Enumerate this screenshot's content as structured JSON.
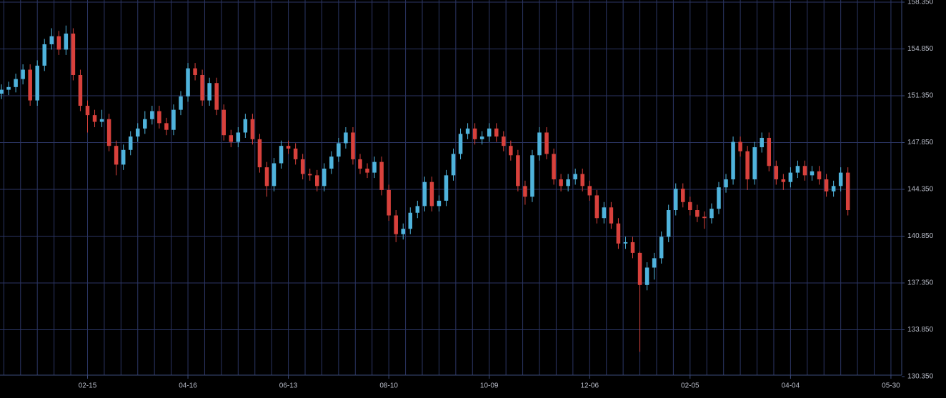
{
  "chart_data": {
    "type": "candlestick",
    "open": [
      151.5,
      151.8,
      152.0,
      152.6,
      153.3,
      151.0,
      153.6,
      155.2,
      155.8,
      154.8,
      156.0,
      152.9,
      150.6,
      149.9,
      149.4,
      149.6,
      147.6,
      146.2,
      147.3,
      148.3,
      148.9,
      149.6,
      150.2,
      149.3,
      148.8,
      150.3,
      151.3,
      153.4,
      152.9,
      151.0,
      152.3,
      150.3,
      148.4,
      147.9,
      148.6,
      149.6,
      148.1,
      146.0,
      144.6,
      146.3,
      147.6,
      147.4,
      146.6,
      145.5,
      145.4,
      144.6,
      145.9,
      146.8,
      147.8,
      148.6,
      146.6,
      145.9,
      145.6,
      146.4,
      144.3,
      142.4,
      141.0,
      141.4,
      142.6,
      143.1,
      144.9,
      143.1,
      143.5,
      145.4,
      147.0,
      148.5,
      148.9,
      148.1,
      148.3,
      148.9,
      148.3,
      147.6,
      146.9,
      144.6,
      143.8,
      146.9,
      148.6,
      147.0,
      145.1,
      144.6,
      145.1,
      145.5,
      144.6,
      143.9,
      142.2,
      143.0,
      141.8,
      140.3,
      140.4,
      139.6,
      137.2,
      138.5,
      139.2,
      140.8,
      142.8,
      144.4,
      143.4,
      142.8,
      142.3,
      142.2,
      142.9,
      144.5,
      145.1,
      147.9,
      147.2,
      145.1,
      147.5,
      148.2,
      146.1,
      145.1,
      144.9,
      145.6,
      146.1,
      145.4,
      145.7,
      145.1,
      144.2,
      144.6,
      145.6
    ],
    "high": [
      152.2,
      152.4,
      153.0,
      153.7,
      153.7,
      154.0,
      155.6,
      156.4,
      156.2,
      156.6,
      156.4,
      153.3,
      151.0,
      150.3,
      150.3,
      150.0,
      148.0,
      147.7,
      148.7,
      149.3,
      150.2,
      150.6,
      150.6,
      149.7,
      150.7,
      151.7,
      153.8,
      153.8,
      153.3,
      152.7,
      152.7,
      150.7,
      148.8,
      149.0,
      150.0,
      150.0,
      148.5,
      146.4,
      146.7,
      148.0,
      148.0,
      147.8,
      147.0,
      145.9,
      145.8,
      146.3,
      147.2,
      148.2,
      149.0,
      149.0,
      147.0,
      146.3,
      146.8,
      146.8,
      144.7,
      142.8,
      141.8,
      143.0,
      143.5,
      145.3,
      145.3,
      143.9,
      145.8,
      147.4,
      148.9,
      149.3,
      149.3,
      148.7,
      149.3,
      149.3,
      148.7,
      148.0,
      147.3,
      145.0,
      147.3,
      149.0,
      149.0,
      147.4,
      145.5,
      145.5,
      145.9,
      145.9,
      145.0,
      144.3,
      143.4,
      143.4,
      142.2,
      140.8,
      140.8,
      139.7,
      138.9,
      139.6,
      141.2,
      143.2,
      144.8,
      144.8,
      143.8,
      143.2,
      142.7,
      143.3,
      144.9,
      145.5,
      148.3,
      148.3,
      147.6,
      147.9,
      148.6,
      148.6,
      146.5,
      145.5,
      146.0,
      146.5,
      146.5,
      146.1,
      146.1,
      145.5,
      145.0,
      146.0,
      146.0
    ],
    "low": [
      151.1,
      151.4,
      151.6,
      152.2,
      150.6,
      150.6,
      153.2,
      154.8,
      154.4,
      154.4,
      152.5,
      150.2,
      148.6,
      149.0,
      149.0,
      147.2,
      145.4,
      145.8,
      146.9,
      147.9,
      148.5,
      149.2,
      148.9,
      148.4,
      148.4,
      149.9,
      150.9,
      152.5,
      150.6,
      150.6,
      149.9,
      148.0,
      147.5,
      147.5,
      148.2,
      147.7,
      145.6,
      143.8,
      144.2,
      145.9,
      147.0,
      146.2,
      145.1,
      145.0,
      144.2,
      144.2,
      145.5,
      146.4,
      147.4,
      146.2,
      145.5,
      145.2,
      145.2,
      143.9,
      142.0,
      140.4,
      140.6,
      141.0,
      142.2,
      142.7,
      142.7,
      142.7,
      143.1,
      145.0,
      146.6,
      148.1,
      147.7,
      147.7,
      147.9,
      147.9,
      147.2,
      146.5,
      144.2,
      143.2,
      143.4,
      146.5,
      146.6,
      144.7,
      144.2,
      144.2,
      144.7,
      144.2,
      143.5,
      141.8,
      141.8,
      141.4,
      139.9,
      139.9,
      139.2,
      132.2,
      136.8,
      137.6,
      138.8,
      140.4,
      142.4,
      143.0,
      142.4,
      141.9,
      141.4,
      141.8,
      142.5,
      144.1,
      144.7,
      146.8,
      144.3,
      144.7,
      147.1,
      145.7,
      144.7,
      144.3,
      144.5,
      145.2,
      145.0,
      145.0,
      144.7,
      143.8,
      143.8,
      144.2,
      142.4
    ],
    "close": [
      151.8,
      152.0,
      152.6,
      153.3,
      151.0,
      153.6,
      155.2,
      155.8,
      154.8,
      156.0,
      152.9,
      150.6,
      149.9,
      149.4,
      149.6,
      147.6,
      146.2,
      147.3,
      148.3,
      148.9,
      149.6,
      150.2,
      149.3,
      148.8,
      150.3,
      151.3,
      153.4,
      152.9,
      151.0,
      152.3,
      150.3,
      148.4,
      147.9,
      148.6,
      149.6,
      148.1,
      146.0,
      144.6,
      146.3,
      147.6,
      147.4,
      146.6,
      145.5,
      145.4,
      144.6,
      145.9,
      146.8,
      147.8,
      148.6,
      146.6,
      145.9,
      145.6,
      146.4,
      144.3,
      142.4,
      141.0,
      141.4,
      142.6,
      143.1,
      144.9,
      143.1,
      143.5,
      145.4,
      147.0,
      148.5,
      148.9,
      148.1,
      148.3,
      148.9,
      148.3,
      147.6,
      146.9,
      144.6,
      143.8,
      146.9,
      148.6,
      147.0,
      145.1,
      144.6,
      145.1,
      145.5,
      144.6,
      143.9,
      142.2,
      143.0,
      141.8,
      140.3,
      140.4,
      139.6,
      137.2,
      138.5,
      139.2,
      140.8,
      142.8,
      144.4,
      143.4,
      142.8,
      142.3,
      142.2,
      142.9,
      144.5,
      145.1,
      147.9,
      147.2,
      145.1,
      147.5,
      148.2,
      146.1,
      145.1,
      144.9,
      145.6,
      146.1,
      145.4,
      145.7,
      145.1,
      144.2,
      144.6,
      145.6,
      142.8
    ],
    "up_color": "#4fb3dc",
    "down_color": "#d8413c",
    "xlim": [
      -0.2,
      125.5
    ],
    "xticks": [
      {
        "value": 12,
        "label": "02-15"
      },
      {
        "value": 26,
        "label": "04-16"
      },
      {
        "value": 40,
        "label": "06-13"
      },
      {
        "value": 54,
        "label": "08-10"
      },
      {
        "value": 68,
        "label": "10-09"
      },
      {
        "value": 82,
        "label": "12-06"
      },
      {
        "value": 96,
        "label": "02-05"
      },
      {
        "value": 110,
        "label": "04-04"
      },
      {
        "value": 124,
        "label": "05-30"
      }
    ],
    "ylim": [
      130.35,
      158.35
    ],
    "yticks": [
      {
        "value": 130.35,
        "label": "130.350"
      },
      {
        "value": 133.85,
        "label": "133.850"
      },
      {
        "value": 137.35,
        "label": "137.350"
      },
      {
        "value": 140.85,
        "label": "140.850"
      },
      {
        "value": 144.35,
        "label": "144.350"
      },
      {
        "value": 147.85,
        "label": "147.850"
      },
      {
        "value": 151.35,
        "label": "151.350"
      },
      {
        "value": 154.85,
        "label": "154.850"
      },
      {
        "value": 158.35,
        "label": "158.350"
      }
    ],
    "grid": true
  }
}
